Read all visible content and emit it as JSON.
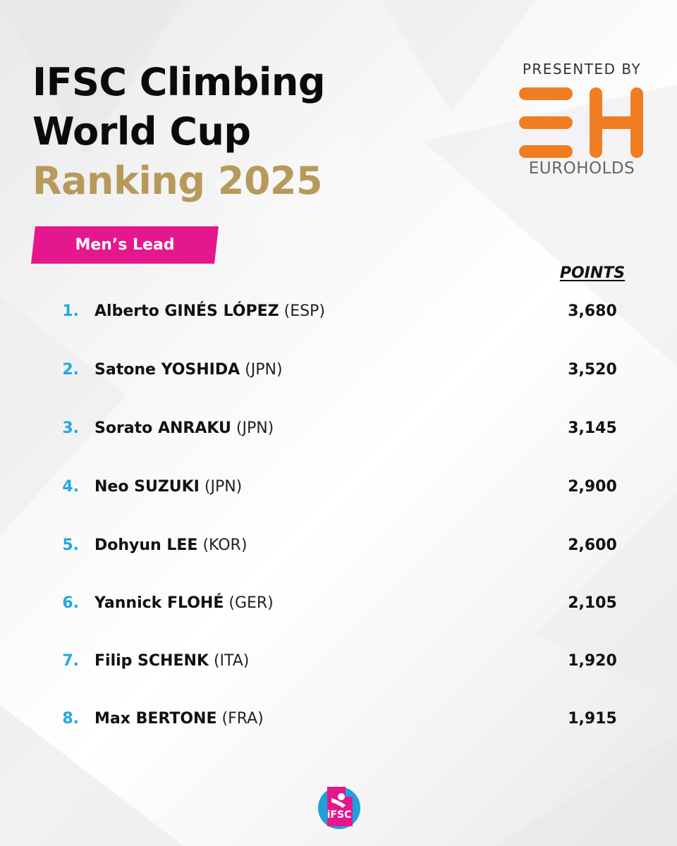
{
  "title": {
    "line1": "IFSC Climbing",
    "line2": "World Cup",
    "line3": "Ranking 2025"
  },
  "sponsor": {
    "presented_by": "PRESENTED BY",
    "logo_icon": "eh-logo-icon",
    "brand_name": "EUROHOLDS",
    "brand_color": "#f07d22"
  },
  "category": {
    "label": "Men’s Lead",
    "color": "#e5178c"
  },
  "table": {
    "points_header": "POINTS",
    "rank_color": "#22a8e0",
    "rows": [
      {
        "rank": "1.",
        "name": "Alberto GINÉS LÓPEZ",
        "country": "(ESP)",
        "points": "3,680"
      },
      {
        "rank": "2.",
        "name": "Satone YOSHIDA",
        "country": "(JPN)",
        "points": "3,520"
      },
      {
        "rank": "3.",
        "name": "Sorato ANRAKU",
        "country": "(JPN)",
        "points": "3,145"
      },
      {
        "rank": "4.",
        "name": "Neo SUZUKI",
        "country": "(JPN)",
        "points": "2,900"
      },
      {
        "rank": "5.",
        "name": "Dohyun LEE",
        "country": "(KOR)",
        "points": "2,600"
      },
      {
        "rank": "6.",
        "name": "Yannick FLOHÉ",
        "country": "(GER)",
        "points": "2,105"
      },
      {
        "rank": "7.",
        "name": "Filip SCHENK",
        "country": "(ITA)",
        "points": "1,920"
      },
      {
        "rank": "8.",
        "name": "Max BERTONE",
        "country": "(FRA)",
        "points": "1,915"
      }
    ]
  },
  "footer": {
    "logo_text": "iFSC",
    "logo_icon": "ifsc-logo-icon"
  }
}
